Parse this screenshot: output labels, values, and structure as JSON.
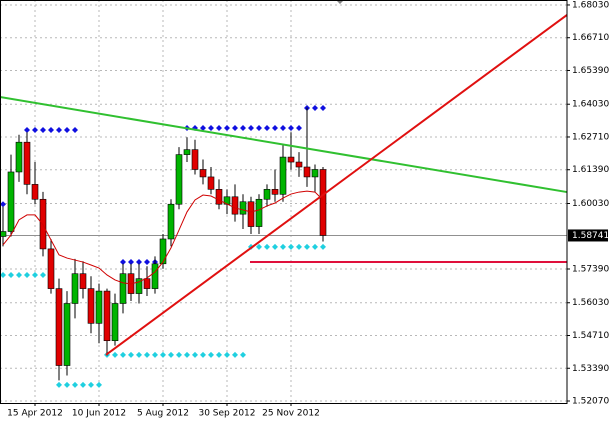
{
  "chart_data": {
    "type": "candlestick",
    "categories": [
      null,
      null,
      null,
      null,
      "15 Apr 2012",
      null,
      null,
      null,
      null,
      null,
      null,
      null,
      "10 Jun 2012",
      null,
      null,
      null,
      null,
      null,
      null,
      null,
      "5 Aug 2012",
      null,
      null,
      null,
      null,
      null,
      null,
      null,
      "30 Sep 2012",
      null,
      null,
      null,
      null,
      null,
      null,
      null,
      "25 Nov 2012",
      null,
      null,
      null,
      null
    ],
    "open": [
      1.587,
      1.589,
      1.613,
      1.625,
      1.608,
      1.602,
      1.582,
      1.566,
      1.535,
      1.56,
      1.572,
      1.566,
      1.552,
      1.565,
      1.545,
      1.56,
      1.572,
      1.564,
      1.57,
      1.566,
      1.576,
      1.586,
      1.6,
      1.62,
      1.622,
      1.614,
      1.611,
      1.606,
      1.6,
      1.603,
      1.596,
      1.601,
      1.591,
      1.602,
      1.606,
      1.604,
      1.619,
      1.617,
      1.615,
      1.611,
      1.614
    ],
    "high": [
      1.599,
      1.62,
      1.628,
      1.629,
      1.617,
      1.605,
      1.586,
      1.57,
      1.565,
      1.578,
      1.577,
      1.571,
      1.568,
      1.566,
      1.564,
      1.576,
      1.576,
      1.576,
      1.575,
      1.579,
      1.588,
      1.602,
      1.623,
      1.627,
      1.626,
      1.618,
      1.615,
      1.61,
      1.606,
      1.608,
      1.604,
      1.603,
      1.604,
      1.608,
      1.614,
      1.624,
      1.629,
      1.621,
      1.639,
      1.616,
      1.615
    ],
    "low": [
      1.583,
      1.587,
      1.609,
      1.604,
      1.6,
      1.579,
      1.564,
      1.529,
      1.531,
      1.554,
      1.562,
      1.548,
      1.544,
      1.539,
      1.543,
      1.556,
      1.561,
      1.56,
      1.563,
      1.564,
      1.574,
      1.583,
      1.598,
      1.617,
      1.612,
      1.608,
      1.604,
      1.598,
      1.596,
      1.593,
      1.59,
      1.588,
      1.588,
      1.599,
      1.601,
      1.601,
      1.614,
      1.611,
      1.607,
      1.605,
      1.585
    ],
    "close": [
      1.589,
      1.613,
      1.625,
      1.608,
      1.602,
      1.582,
      1.566,
      1.535,
      1.56,
      1.572,
      1.566,
      1.552,
      1.565,
      1.545,
      1.56,
      1.572,
      1.564,
      1.57,
      1.566,
      1.576,
      1.586,
      1.6,
      1.62,
      1.622,
      1.614,
      1.611,
      1.606,
      1.6,
      1.603,
      1.596,
      1.601,
      1.591,
      1.602,
      1.606,
      1.604,
      1.619,
      1.617,
      1.615,
      1.611,
      1.614,
      1.58741
    ],
    "up_color": "#00b400",
    "down_color": "#e00000",
    "moving_average": {
      "color": "#d00000",
      "values": [
        1.5836,
        1.5876,
        1.5937,
        1.5957,
        1.5957,
        1.5917,
        1.5856,
        1.5796,
        1.5783,
        1.5775,
        1.5767,
        1.5755,
        1.5743,
        1.5715,
        1.5695,
        1.5683,
        1.5679,
        1.5687,
        1.5703,
        1.5727,
        1.5767,
        1.5824,
        1.5896,
        1.5969,
        1.6017,
        1.6037,
        1.6033,
        1.6017,
        1.6001,
        1.5985,
        1.5977,
        1.5969,
        1.5977,
        1.5993,
        1.6005,
        1.6025,
        1.6041,
        1.6049,
        1.6053,
        1.6049,
        1.6017
      ]
    },
    "levels": [
      {
        "color": "#1010e0",
        "from": 0,
        "to": 1,
        "value": 1.6
      },
      {
        "color": "#1010e0",
        "from": 3,
        "to": 9,
        "value": 1.6299
      },
      {
        "color": "#1010e0",
        "from": 15,
        "to": 19,
        "value": 1.5767
      },
      {
        "color": "#1010e0",
        "from": 23,
        "to": 37,
        "value": 1.6307
      },
      {
        "color": "#1010e0",
        "from": 38,
        "to": 40,
        "value": 1.6388
      },
      {
        "color": "#20d0e0",
        "from": 0,
        "to": 6,
        "value": 1.5715
      },
      {
        "color": "#20d0e0",
        "from": 7,
        "to": 12,
        "value": 1.5272
      },
      {
        "color": "#20d0e0",
        "from": 13,
        "to": 30,
        "value": 1.5393
      },
      {
        "color": "#20d0e0",
        "from": 31,
        "to": 40,
        "value": 1.5828
      }
    ],
    "lines": [
      {
        "color": "#30c030",
        "x": [
          -0.375,
          70.5
        ],
        "y": [
          1.6432,
          1.6049
        ]
      },
      {
        "color": "#e01010",
        "x": [
          12.875,
          70.5
        ],
        "y": [
          1.5393,
          1.6763
        ]
      },
      {
        "color": "#e0103c",
        "x": [
          30.875,
          70.5
        ],
        "y": [
          1.5767,
          1.5767
        ]
      }
    ],
    "current_price": 1.58741,
    "ylim": [
      1.5199,
      1.6823
    ],
    "yticks": [
      {
        "value": 1.5207,
        "label": "1.52070"
      },
      {
        "value": 1.5339,
        "label": "1.53390"
      },
      {
        "value": 1.5471,
        "label": "1.54710"
      },
      {
        "value": 1.5603,
        "label": "1.56030"
      },
      {
        "value": 1.5739,
        "label": "1.57390"
      },
      {
        "value": 1.6003,
        "label": "1.60030"
      },
      {
        "value": 1.6139,
        "label": "1.61390"
      },
      {
        "value": 1.6271,
        "label": "1.62710"
      },
      {
        "value": 1.6403,
        "label": "1.64030"
      },
      {
        "value": 1.6539,
        "label": "1.65390"
      },
      {
        "value": 1.6671,
        "label": "1.66710"
      },
      {
        "value": 1.6803,
        "label": "1.68030"
      }
    ],
    "grid": true
  }
}
